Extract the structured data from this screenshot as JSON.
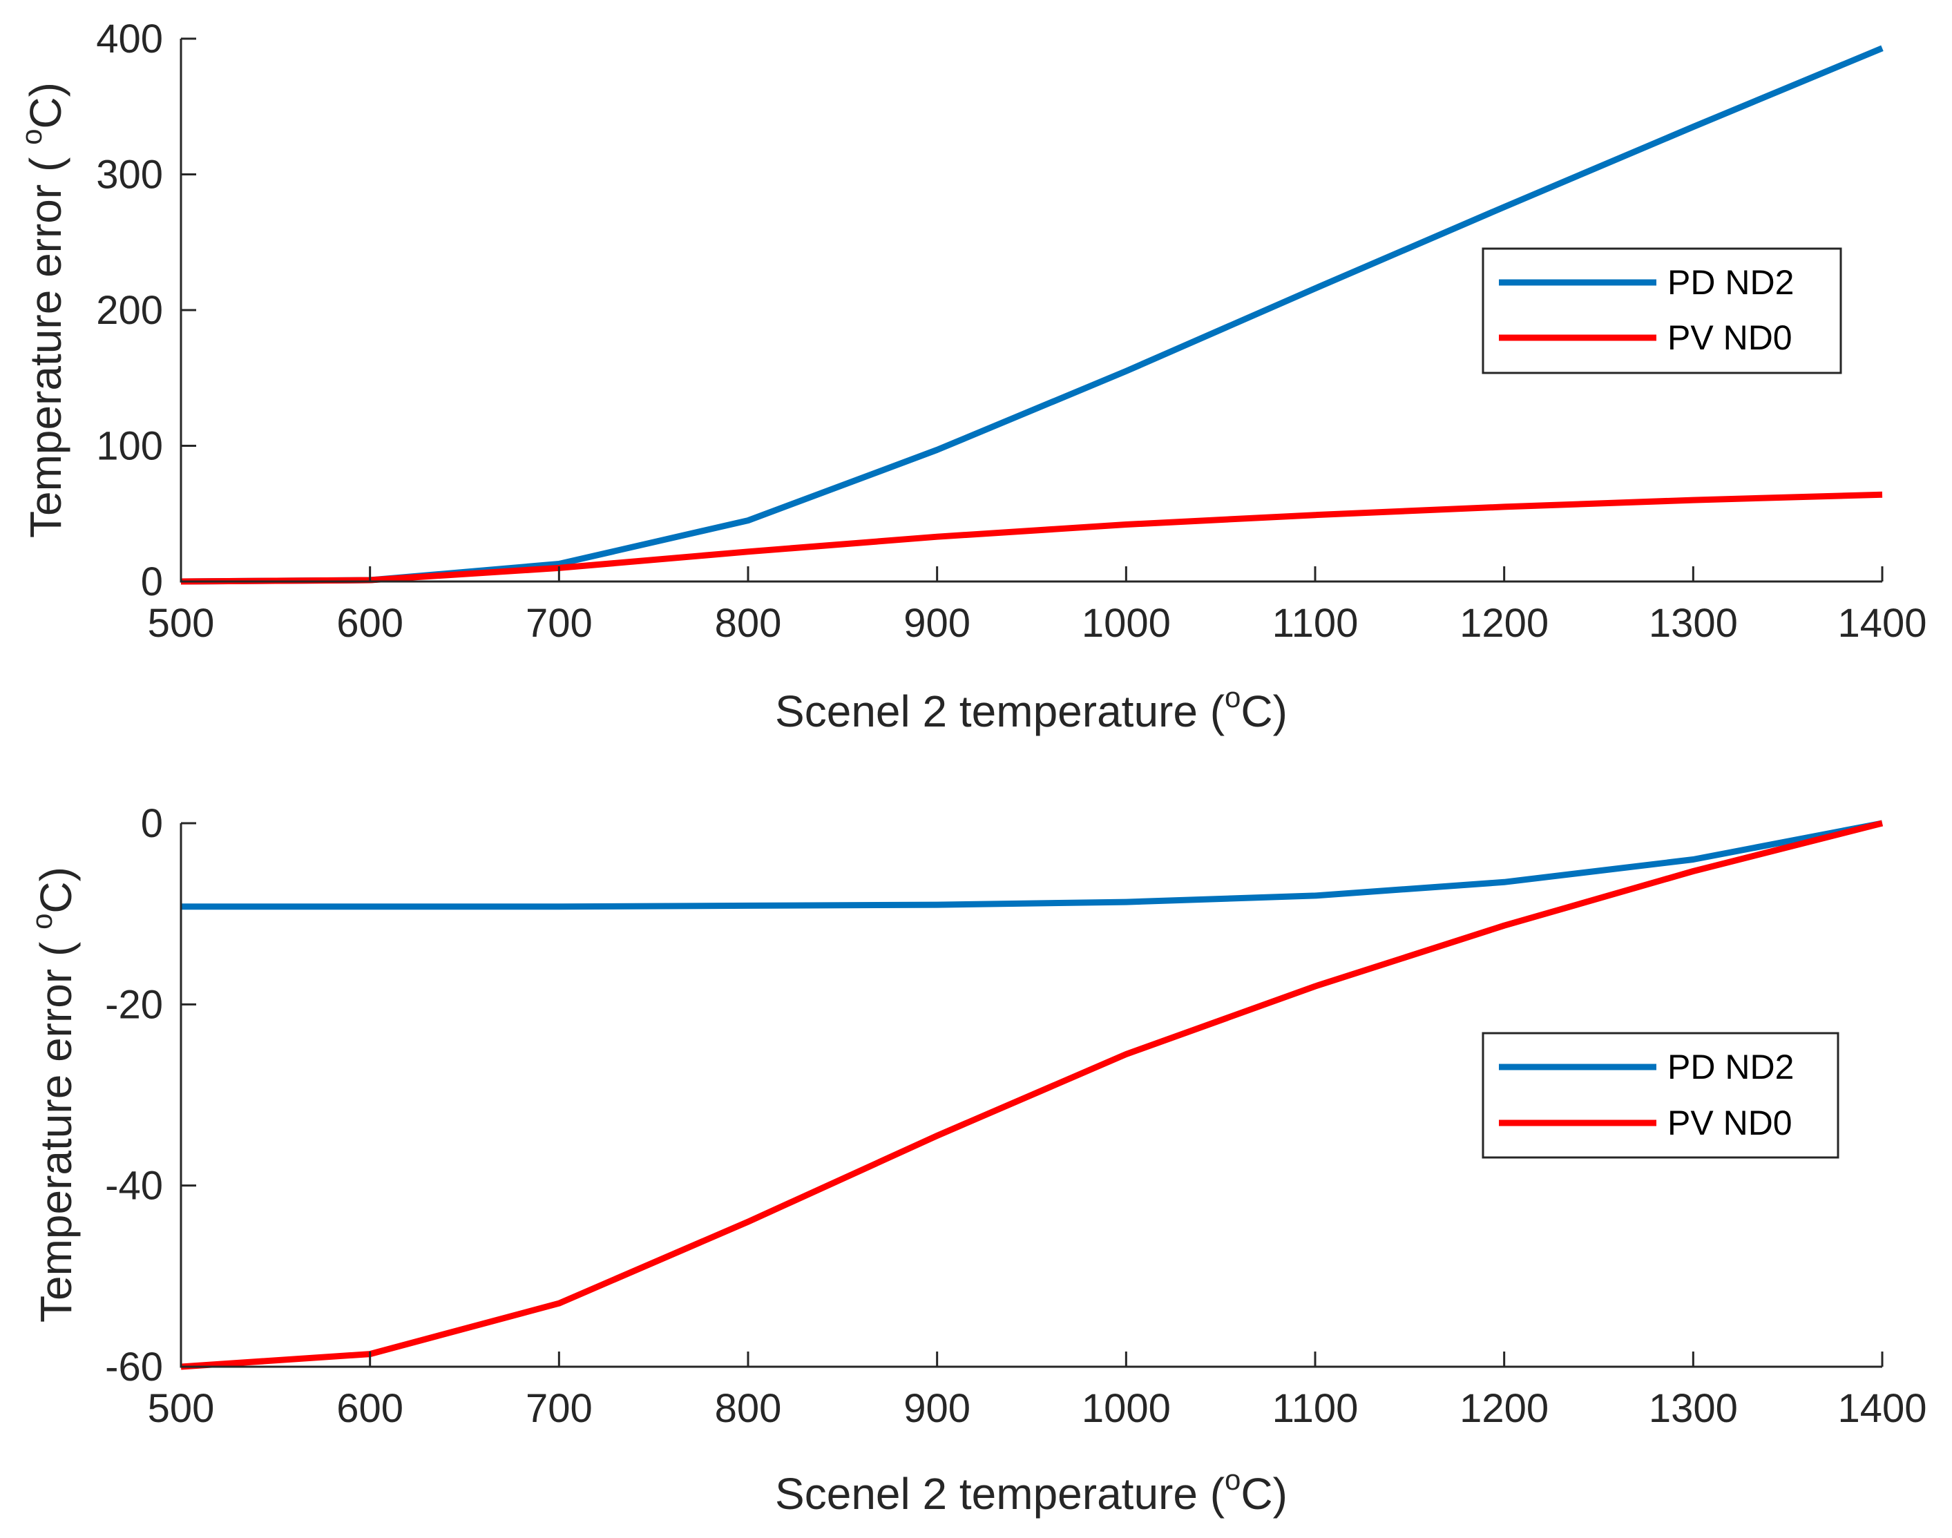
{
  "chart_data": [
    {
      "type": "line",
      "xlabel": "Scenel 2 temperature (",
      "xlabel_sup": "o",
      "xlabel_tail": "C)",
      "ylabel": "Temperature error ( ",
      "ylabel_sup": "o",
      "ylabel_tail": "C)",
      "xlim": [
        500,
        1400
      ],
      "ylim": [
        0,
        400
      ],
      "xticks": [
        500,
        600,
        700,
        800,
        900,
        1000,
        1100,
        1200,
        1300,
        1400
      ],
      "yticks": [
        0,
        100,
        200,
        300,
        400
      ],
      "legend_position": "right",
      "x": [
        500,
        600,
        700,
        800,
        900,
        1000,
        1100,
        1200,
        1300,
        1400
      ],
      "series": [
        {
          "name": "PD ND2",
          "color": "#0072BD",
          "values": [
            0,
            1,
            13,
            45,
            97,
            155,
            216,
            276,
            335,
            393
          ]
        },
        {
          "name": "PV ND0",
          "color": "#FF0000",
          "values": [
            0,
            1,
            10,
            22,
            33,
            42,
            49,
            55,
            60,
            64
          ]
        }
      ]
    },
    {
      "type": "line",
      "xlabel": "Scenel 2 temperature (",
      "xlabel_sup": "o",
      "xlabel_tail": "C)",
      "ylabel": "Temperature error ( ",
      "ylabel_sup": "o",
      "ylabel_tail": "C)",
      "xlim": [
        500,
        1400
      ],
      "ylim": [
        -60,
        0
      ],
      "xticks": [
        500,
        600,
        700,
        800,
        900,
        1000,
        1100,
        1200,
        1300,
        1400
      ],
      "yticks": [
        -60,
        -40,
        -20,
        0
      ],
      "legend_position": "right",
      "x": [
        500,
        600,
        700,
        800,
        900,
        1000,
        1100,
        1200,
        1300,
        1400
      ],
      "series": [
        {
          "name": "PD ND2",
          "color": "#0072BD",
          "values": [
            -9.2,
            -9.2,
            -9.2,
            -9.1,
            -9.0,
            -8.7,
            -8.0,
            -6.5,
            -4.0,
            0
          ]
        },
        {
          "name": "PV ND0",
          "color": "#FF0000",
          "values": [
            -60,
            -58.6,
            -53,
            -44,
            -34.5,
            -25.5,
            -18,
            -11.3,
            -5.3,
            0
          ]
        }
      ]
    }
  ]
}
